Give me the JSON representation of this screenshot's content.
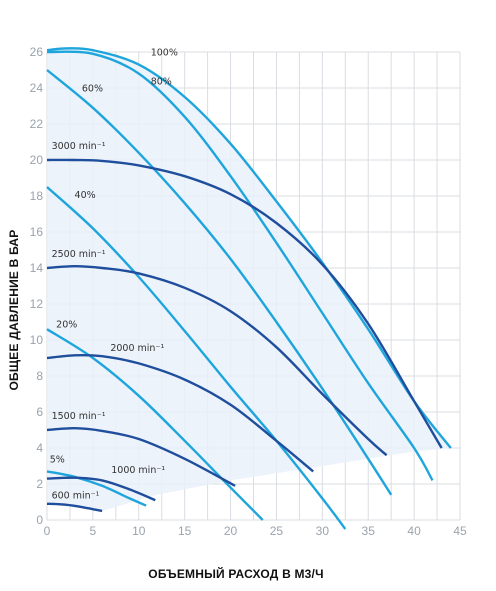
{
  "chart_data": {
    "type": "line",
    "xlabel": "ОБЪЕМНЫЙ РАСХОД В М3/Ч",
    "ylabel": "ОБЩЕЕ ДАВЛЕНИЕ В БАР",
    "xlim": [
      0,
      45
    ],
    "ylim": [
      0,
      26
    ],
    "xticks": [
      "0",
      "5",
      "10",
      "15",
      "20",
      "25",
      "30",
      "35",
      "40",
      "45"
    ],
    "yticks": [
      "0",
      "2",
      "4",
      "6",
      "8",
      "10",
      "12",
      "14",
      "16",
      "18",
      "20",
      "22",
      "24",
      "26"
    ],
    "grid": true,
    "colors": {
      "speed": "#1f4e9c",
      "efficiency": "#1ea5dc",
      "region": "#eaf1fa"
    },
    "speed_curves": [
      {
        "name": "3000 min⁻¹",
        "label_pos": [
          0.5,
          20.6
        ],
        "x": [
          0,
          3,
          6,
          10,
          15,
          20,
          25,
          30,
          35,
          40,
          43
        ],
        "y": [
          20.0,
          20.0,
          19.95,
          19.7,
          19.1,
          18.1,
          16.5,
          14.2,
          10.9,
          6.6,
          4.0
        ]
      },
      {
        "name": "2500 min⁻¹",
        "label_pos": [
          0.5,
          14.6
        ],
        "x": [
          0,
          3,
          6,
          10,
          15,
          20,
          25,
          30,
          35,
          37
        ],
        "y": [
          14.0,
          14.1,
          14.0,
          13.7,
          12.9,
          11.6,
          9.6,
          7.0,
          4.5,
          3.6
        ]
      },
      {
        "name": "2000 min⁻¹",
        "label_pos": [
          6.9,
          9.4
        ],
        "x": [
          0,
          3,
          6,
          10,
          15,
          20,
          25,
          29
        ],
        "y": [
          9.0,
          9.15,
          9.1,
          8.7,
          7.8,
          6.4,
          4.4,
          2.7
        ]
      },
      {
        "name": "1500 min⁻¹",
        "label_pos": [
          0.5,
          5.6
        ],
        "x": [
          0,
          3,
          6,
          10,
          15,
          20.5
        ],
        "y": [
          5.0,
          5.1,
          4.95,
          4.5,
          3.4,
          1.9
        ]
      },
      {
        "name": "1000 min⁻¹",
        "label_pos": [
          7.0,
          2.6
        ],
        "x": [
          0,
          3,
          6,
          9,
          11.8
        ],
        "y": [
          2.3,
          2.35,
          2.2,
          1.7,
          1.1
        ]
      },
      {
        "name": "600 min⁻¹",
        "label_pos": [
          0.5,
          1.2
        ],
        "x": [
          0,
          2,
          4,
          6
        ],
        "y": [
          0.9,
          0.85,
          0.7,
          0.5
        ]
      }
    ],
    "efficiency_curves": [
      {
        "name": "100%",
        "label_pos": [
          11.3,
          25.8
        ],
        "x": [
          0,
          2,
          5,
          10,
          15,
          20,
          25,
          30,
          35,
          40,
          44
        ],
        "y": [
          26.1,
          26.2,
          26.1,
          25.3,
          23.5,
          20.9,
          17.7,
          14.3,
          10.6,
          6.6,
          4.0
        ]
      },
      {
        "name": "80%",
        "label_pos": [
          11.3,
          24.2
        ],
        "x": [
          0,
          5,
          10,
          15,
          20,
          25,
          30,
          35,
          40,
          42
        ],
        "y": [
          26.0,
          25.9,
          24.8,
          22.4,
          19.1,
          15.4,
          11.5,
          7.6,
          4.0,
          2.2
        ]
      },
      {
        "name": "60%",
        "label_pos": [
          3.8,
          23.8
        ],
        "x": [
          0,
          5,
          10,
          15,
          20,
          25,
          30,
          35,
          37.5
        ],
        "y": [
          25.0,
          22.9,
          20.4,
          17.6,
          14.5,
          11.0,
          7.3,
          3.4,
          1.4
        ]
      },
      {
        "name": "40%",
        "label_pos": [
          3.0,
          17.9
        ],
        "x": [
          0,
          5,
          10,
          15,
          20,
          25,
          30,
          32.5
        ],
        "y": [
          18.5,
          16.2,
          13.5,
          10.5,
          7.4,
          4.4,
          1.2,
          -0.5
        ]
      },
      {
        "name": "20%",
        "label_pos": [
          1.0,
          10.7
        ],
        "x": [
          0,
          5,
          10,
          15,
          20,
          23.5
        ],
        "y": [
          10.6,
          9.0,
          6.9,
          4.4,
          1.8,
          0.0
        ]
      },
      {
        "name": "5%",
        "label_pos": [
          0.3,
          3.2
        ],
        "x": [
          0,
          3,
          6,
          9,
          10.8
        ],
        "y": [
          2.7,
          2.4,
          1.9,
          1.2,
          0.8
        ]
      }
    ]
  }
}
